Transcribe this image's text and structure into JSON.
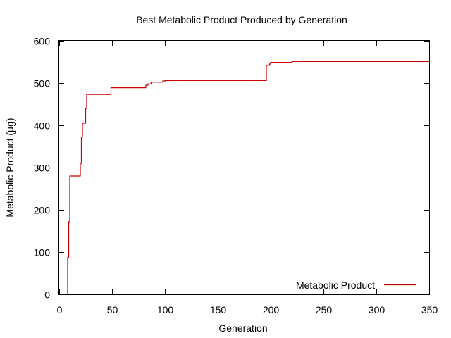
{
  "chart_data": {
    "type": "line",
    "title": "Best Metabolic Product Produced by Generation",
    "xlabel": "Generation",
    "ylabel": "Metabolic Product (µg)",
    "xlim": [
      0,
      350
    ],
    "ylim": [
      0,
      600
    ],
    "xticks": [
      0,
      50,
      100,
      150,
      200,
      250,
      300,
      350
    ],
    "yticks": [
      0,
      100,
      200,
      300,
      400,
      500,
      600
    ],
    "grid": false,
    "legend": "bottom-right",
    "series": [
      {
        "name": "Metabolic Product",
        "color": "#cc0000",
        "step": true,
        "x": [
          7,
          8,
          9,
          10,
          20,
          21,
          22,
          25,
          26,
          48,
          49,
          82,
          84,
          87,
          98,
          100,
          195,
          196,
          199,
          200,
          218,
          220,
          350
        ],
        "y": [
          0,
          87,
          172,
          280,
          310,
          372,
          405,
          440,
          473,
          473,
          489,
          495,
          498,
          502,
          505,
          506,
          506,
          542,
          545,
          549,
          549,
          551,
          551
        ]
      }
    ]
  }
}
